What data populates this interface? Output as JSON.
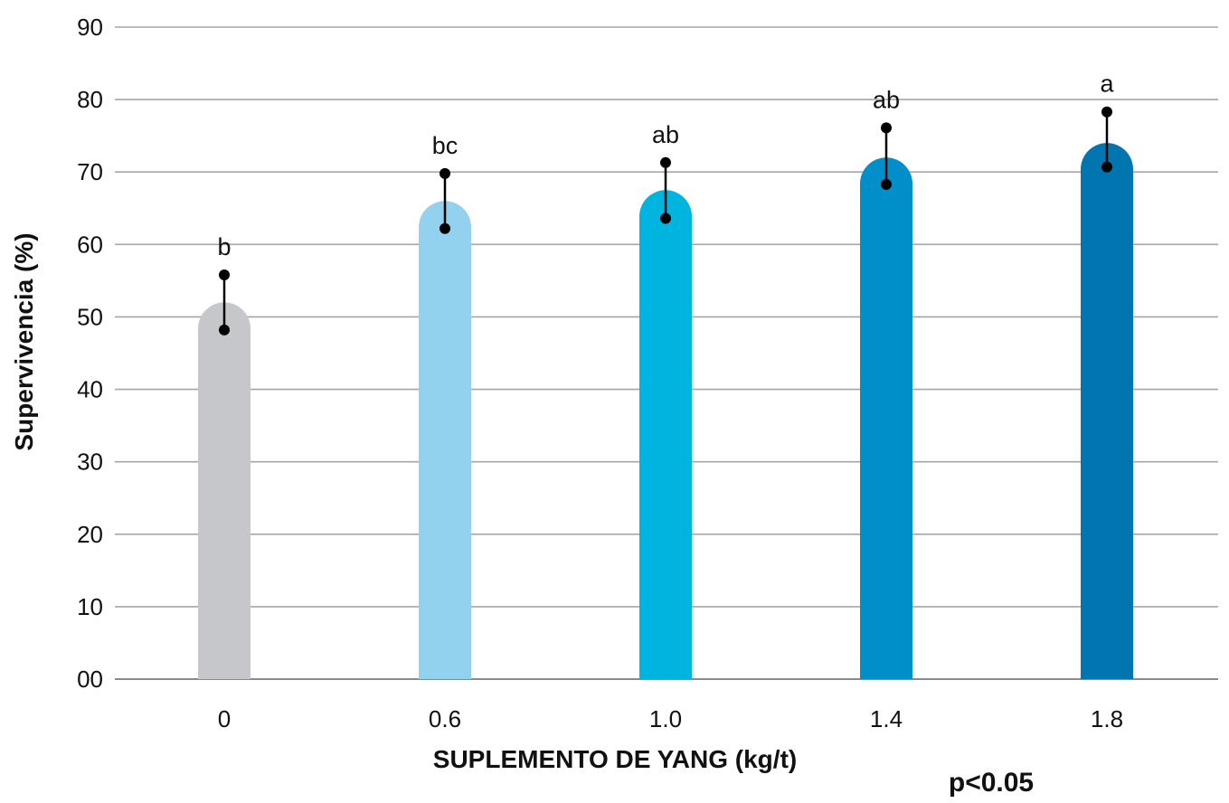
{
  "chart_data": {
    "type": "bar",
    "title": "",
    "xlabel": "SUPLEMENTO DE YANG (kg/t)",
    "ylabel": "Supervivencia (%)",
    "categories": [
      "0",
      "0.6",
      "1.0",
      "1.4",
      "1.8"
    ],
    "values": [
      52,
      66,
      67.5,
      72,
      74
    ],
    "error_upper": [
      55.8,
      69.8,
      71.3,
      76.1,
      78.3
    ],
    "error_lower": [
      48.2,
      62.2,
      63.6,
      68.3,
      70.7
    ],
    "significance_letters": [
      "b",
      "bc",
      "ab",
      "ab",
      "a"
    ],
    "bar_colors": [
      "#c6c7cb",
      "#93d2ef",
      "#00b4e0",
      "#008fc9",
      "#0075b0"
    ],
    "ylim": [
      0,
      90
    ],
    "yticks": [
      0,
      10,
      20,
      30,
      40,
      50,
      60,
      70,
      80,
      90
    ],
    "ytick_labels": [
      "00",
      "10",
      "20",
      "30",
      "40",
      "50",
      "60",
      "70",
      "80",
      "90"
    ],
    "grid": true,
    "annotation": "p<0.05"
  }
}
